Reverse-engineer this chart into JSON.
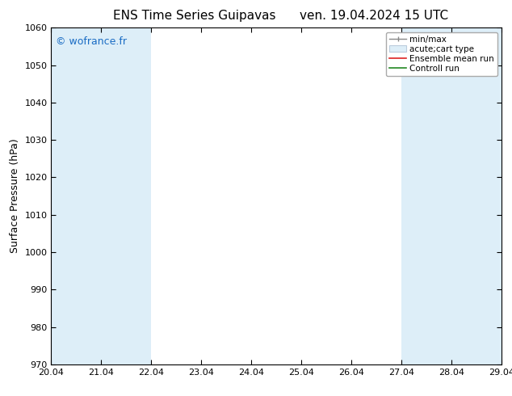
{
  "title_left": "ENS Time Series Guipavas",
  "title_right": "ven. 19.04.2024 15 UTC",
  "ylabel": "Surface Pressure (hPa)",
  "ylim": [
    970,
    1060
  ],
  "yticks": [
    970,
    980,
    990,
    1000,
    1010,
    1020,
    1030,
    1040,
    1050,
    1060
  ],
  "xlim": [
    0,
    9
  ],
  "xtick_labels": [
    "20.04",
    "21.04",
    "22.04",
    "23.04",
    "24.04",
    "25.04",
    "26.04",
    "27.04",
    "28.04",
    "29.04"
  ],
  "xtick_positions": [
    0,
    1,
    2,
    3,
    4,
    5,
    6,
    7,
    8,
    9
  ],
  "shaded_bands": [
    {
      "xmin": 0.0,
      "xmax": 1.0
    },
    {
      "xmin": 1.0,
      "xmax": 2.0
    },
    {
      "xmin": 7.0,
      "xmax": 8.0
    },
    {
      "xmin": 8.0,
      "xmax": 9.0
    }
  ],
  "band_color": "#ddeef8",
  "background_color": "#ffffff",
  "watermark_text": "© wofrance.fr",
  "watermark_color": "#1a6cc4",
  "legend_labels": [
    "min/max",
    "acute;cart type",
    "Ensemble mean run",
    "Controll run"
  ],
  "legend_line_colors": [
    "#888888",
    "#bbccdd",
    "#dd2222",
    "#228822"
  ],
  "legend_patch_color": "#ddeef8",
  "title_fontsize": 11,
  "axis_label_fontsize": 9,
  "tick_fontsize": 8,
  "legend_fontsize": 7.5,
  "watermark_fontsize": 9
}
